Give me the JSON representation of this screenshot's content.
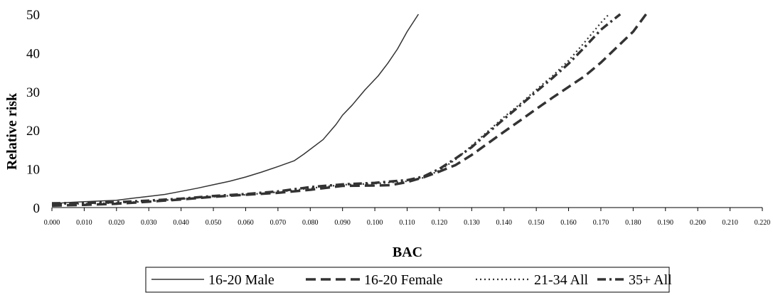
{
  "chart_data": {
    "type": "line",
    "title": "",
    "xlabel": "BAC",
    "ylabel": "Relative risk",
    "xlim": [
      0,
      0.22
    ],
    "ylim": [
      0,
      50
    ],
    "y_ticks": [
      "0",
      "10",
      "20",
      "30",
      "40",
      "50"
    ],
    "x_ticks": [
      "0.000",
      "0.010",
      "0.020",
      "0.030",
      "0.040",
      "0.050",
      "0.060",
      "0.070",
      "0.080",
      "0.090",
      "0.100",
      "0.110",
      "0.120",
      "0.130",
      "0.140",
      "0.150",
      "0.160",
      "0.170",
      "0.180",
      "0.190",
      "0.200",
      "0.210",
      "0.220"
    ],
    "grid": false,
    "legend_position": "bottom",
    "series": [
      {
        "name": "16-20 Male",
        "style": "solid",
        "color": "#333333",
        "x": [
          0.0,
          0.005,
          0.01,
          0.015,
          0.02,
          0.025,
          0.03,
          0.035,
          0.04,
          0.045,
          0.05,
          0.055,
          0.06,
          0.065,
          0.07,
          0.075,
          0.078,
          0.084,
          0.088,
          0.09,
          0.093,
          0.097,
          0.101,
          0.104,
          0.107,
          0.11,
          0.1135
        ],
        "y": [
          1.0,
          1.3,
          1.5,
          1.7,
          1.9,
          2.4,
          2.9,
          3.4,
          4.2,
          5.0,
          5.9,
          6.8,
          7.9,
          9.2,
          10.6,
          12.1,
          13.8,
          17.6,
          21.5,
          23.9,
          26.5,
          30.5,
          34.0,
          37.3,
          41.0,
          45.5,
          50.0
        ]
      },
      {
        "name": "16-20 Female",
        "style": "dashed",
        "color": "#333333",
        "x": [
          0.0,
          0.01,
          0.02,
          0.03,
          0.04,
          0.05,
          0.06,
          0.07,
          0.08,
          0.09,
          0.1,
          0.105,
          0.11,
          0.115,
          0.12,
          0.125,
          0.13,
          0.135,
          0.14,
          0.145,
          0.15,
          0.155,
          0.16,
          0.165,
          0.17,
          0.175,
          0.18,
          0.184
        ],
        "y": [
          0.5,
          0.7,
          1.0,
          1.5,
          2.1,
          2.8,
          3.3,
          3.8,
          4.6,
          5.6,
          5.7,
          5.8,
          6.6,
          7.8,
          9.3,
          11.0,
          13.6,
          16.6,
          19.6,
          22.5,
          25.5,
          28.4,
          31.2,
          34.0,
          37.5,
          41.5,
          45.5,
          50.0
        ]
      },
      {
        "name": "21-34 All",
        "style": "dotted",
        "color": "#333333",
        "x": [
          0.0,
          0.01,
          0.02,
          0.03,
          0.04,
          0.05,
          0.06,
          0.07,
          0.08,
          0.09,
          0.1,
          0.11,
          0.115,
          0.12,
          0.125,
          0.13,
          0.135,
          0.14,
          0.145,
          0.15,
          0.155,
          0.16,
          0.165,
          0.17,
          0.1725
        ],
        "y": [
          0.9,
          1.0,
          1.2,
          1.6,
          2.2,
          2.8,
          3.3,
          4.0,
          5.0,
          5.9,
          6.2,
          6.8,
          7.7,
          9.6,
          12.4,
          16.0,
          19.7,
          23.4,
          26.8,
          30.5,
          34.0,
          38.0,
          42.8,
          47.8,
          50.0
        ]
      },
      {
        "name": "35+ All",
        "style": "dash-dot",
        "color": "#333333",
        "x": [
          0.0,
          0.01,
          0.02,
          0.03,
          0.04,
          0.05,
          0.06,
          0.07,
          0.08,
          0.09,
          0.1,
          0.11,
          0.115,
          0.12,
          0.125,
          0.13,
          0.135,
          0.14,
          0.145,
          0.15,
          0.155,
          0.16,
          0.165,
          0.17,
          0.176
        ],
        "y": [
          1.1,
          1.2,
          1.4,
          1.8,
          2.3,
          3.0,
          3.5,
          4.2,
          5.3,
          6.0,
          6.4,
          7.1,
          8.0,
          10.0,
          12.7,
          15.6,
          19.3,
          22.9,
          26.4,
          30.0,
          33.5,
          37.2,
          41.5,
          46.0,
          50.0
        ]
      }
    ]
  }
}
